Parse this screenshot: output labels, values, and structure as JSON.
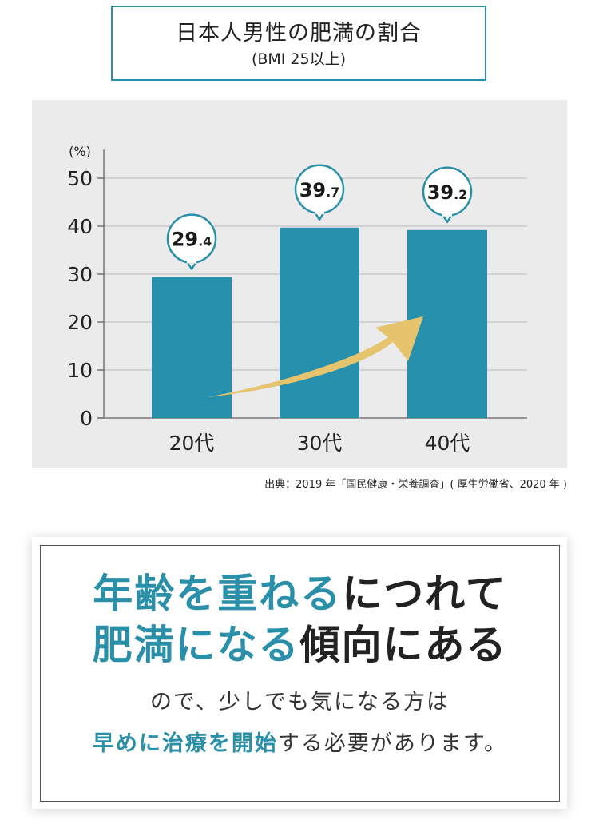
{
  "title": {
    "main": "日本人男性の肥満の割合",
    "sub": "(BMI 25以上)"
  },
  "chart_data": {
    "type": "bar",
    "title": "日本人男性の肥満の割合",
    "subtitle": "(BMI 25以上)",
    "unit_label": "(%)",
    "categories": [
      "20代",
      "30代",
      "40代"
    ],
    "values": [
      29.4,
      39.7,
      39.2
    ],
    "value_labels": [
      {
        "int": "29",
        "dec": ".4"
      },
      {
        "int": "39",
        "dec": ".7"
      },
      {
        "int": "39",
        "dec": ".2"
      }
    ],
    "yticks": [
      "0",
      "10",
      "20",
      "30",
      "40",
      "50"
    ],
    "ylim": [
      0,
      50
    ],
    "grid": true,
    "colors": {
      "bar": "#2690ad",
      "bubble_border": "#2a8fa8",
      "arrow": "#e6c46e",
      "grid": "#b8b8b8",
      "axis": "#777777",
      "panel": "#ebebeb"
    },
    "annotation": "rising-arrow"
  },
  "source": "出典：2019 年「国民健康・栄養調査」( 厚生労働省、2020 年 )",
  "message": {
    "headline1_accent": "年齢を重ねる",
    "headline1_dark": "につれて",
    "headline2_accent": "肥満になる",
    "headline2_dark": "傾向にある",
    "body1": "ので、少しでも気になる方は",
    "body2_accent": "早めに治療を開始",
    "body2_rest": "する必要があります。"
  }
}
